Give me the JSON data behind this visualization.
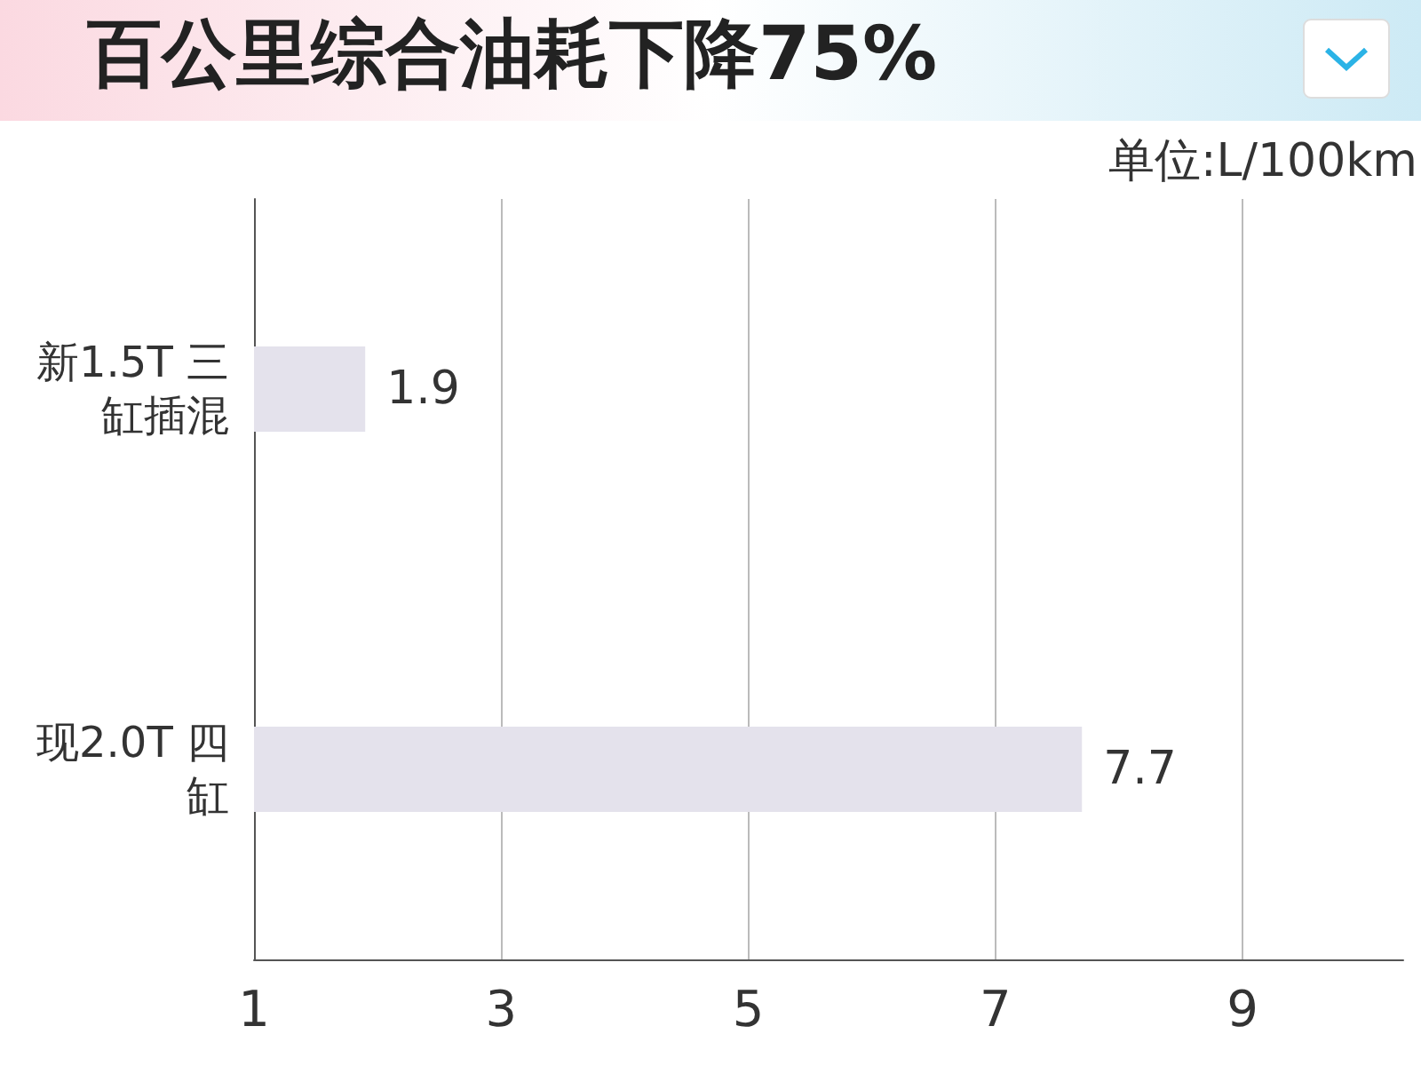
{
  "chart_data": {
    "type": "bar",
    "orientation": "horizontal",
    "title": "百公里综合油耗下降75%",
    "annotations": [
      "单位:L/100km"
    ],
    "categories": [
      "新1.5T 三缸插混",
      "现2.0T 四缸"
    ],
    "series": [
      {
        "color": "#e4e2ec",
        "values": [
          1.9,
          7.7
        ]
      }
    ],
    "xlim": [
      1,
      10.3
    ],
    "xticks": [
      1,
      3,
      5,
      7,
      9
    ],
    "grid": "x",
    "data_labels": true
  }
}
